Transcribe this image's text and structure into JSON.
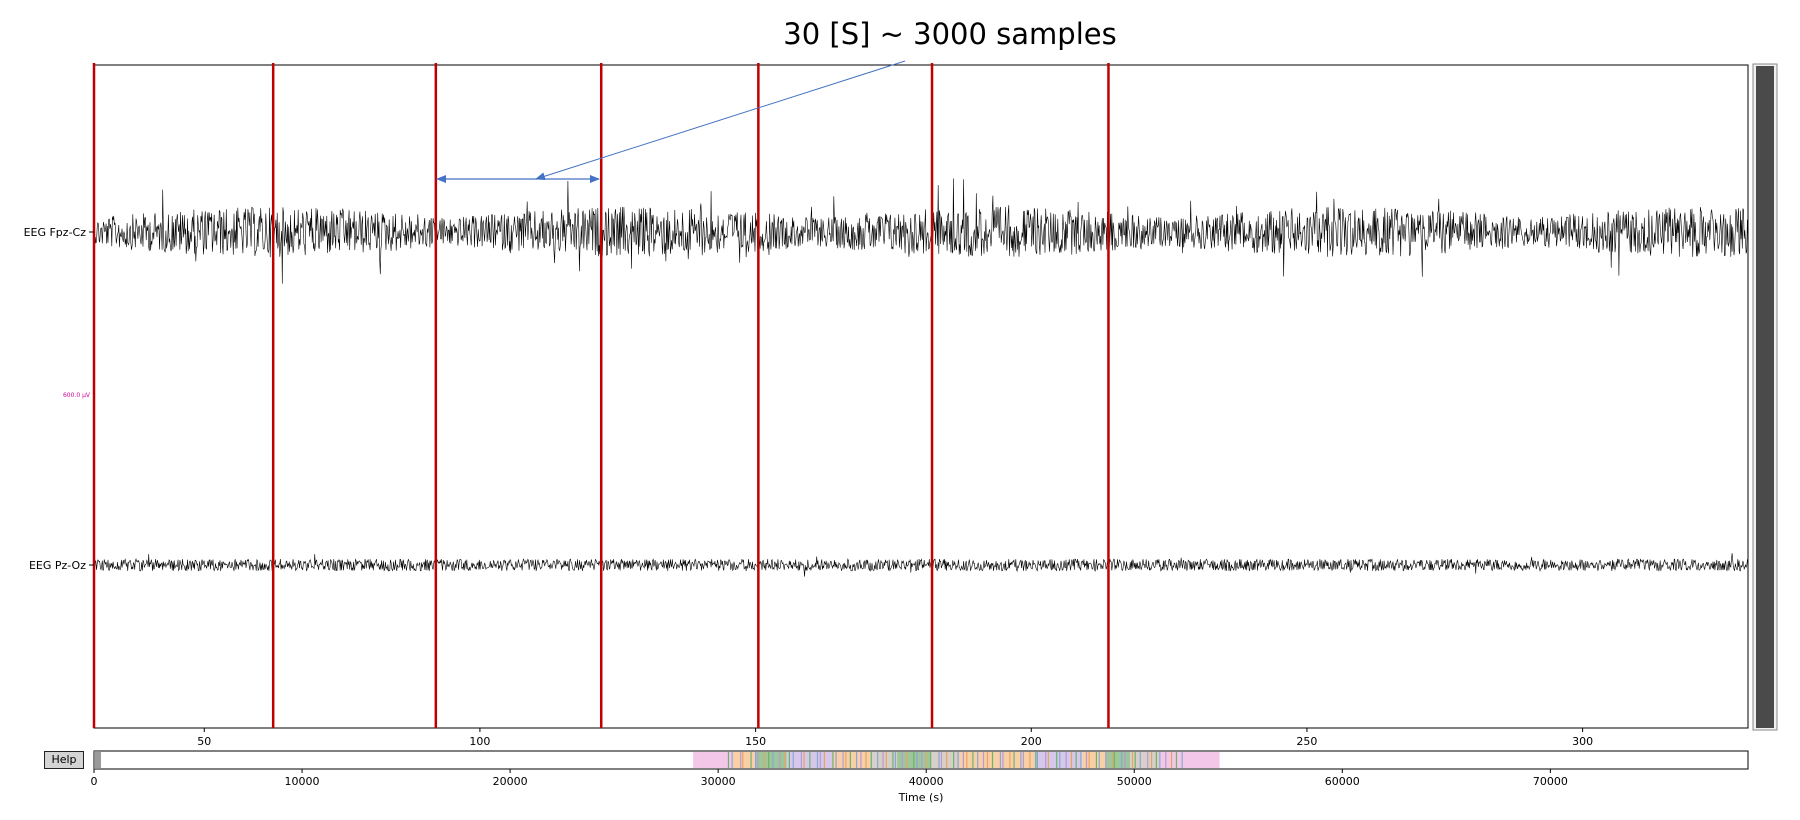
{
  "annotation": {
    "text": "30 [S] ~ 3000 samples"
  },
  "help_button": {
    "label": "Help"
  },
  "chart_data": [
    {
      "type": "line",
      "role": "main-trace-view",
      "channels": [
        {
          "name": "EEG Fpz-Cz",
          "amplitude": "high"
        },
        {
          "name": "EEG Pz-Oz",
          "amplitude": "medium"
        }
      ],
      "xlim": [
        30,
        330
      ],
      "xticks": [
        50,
        100,
        150,
        200,
        250,
        300
      ],
      "scale_label": "600.0 µV",
      "epoch_boundaries": [
        30,
        62.5,
        92,
        122,
        150.5,
        182,
        214
      ],
      "colors": {
        "trace": "#000000",
        "epoch_line": "#c00000",
        "scale": "#cc0099",
        "annotation": "#4472c4",
        "scrollbar": "#4a4a4a"
      }
    },
    {
      "type": "bar",
      "role": "overview-timeline",
      "xlabel": "Time (s)",
      "xlim": [
        0,
        79500
      ],
      "xticks": [
        0,
        10000,
        20000,
        30000,
        40000,
        50000,
        60000,
        70000
      ],
      "segments": [
        {
          "start": 0,
          "end": 400,
          "stage": "current view",
          "color": "#888888"
        },
        {
          "start": 28800,
          "end": 30700,
          "stage": "pink",
          "color": "#f2c7e8"
        },
        {
          "start": 30700,
          "end": 31800,
          "stage": "orange",
          "color": "#f8cfa6"
        },
        {
          "start": 31800,
          "end": 33300,
          "stage": "green",
          "color": "#9cc79a"
        },
        {
          "start": 33300,
          "end": 35500,
          "stage": "purple",
          "color": "#d5c8ea"
        },
        {
          "start": 35500,
          "end": 37300,
          "stage": "orange",
          "color": "#f8cfa6"
        },
        {
          "start": 37300,
          "end": 38600,
          "stage": "grey",
          "color": "#d9cfc9"
        },
        {
          "start": 38600,
          "end": 40200,
          "stage": "green",
          "color": "#9cc79a"
        },
        {
          "start": 40200,
          "end": 41600,
          "stage": "grey",
          "color": "#d9cfc9"
        },
        {
          "start": 41600,
          "end": 45200,
          "stage": "orange",
          "color": "#f8cfa6"
        },
        {
          "start": 45200,
          "end": 47500,
          "stage": "purple",
          "color": "#d5c8ea"
        },
        {
          "start": 47500,
          "end": 48600,
          "stage": "orange",
          "color": "#f8cfa6"
        },
        {
          "start": 48600,
          "end": 49800,
          "stage": "green",
          "color": "#9cc79a"
        },
        {
          "start": 49800,
          "end": 51200,
          "stage": "grey",
          "color": "#d9cfc9"
        },
        {
          "start": 51200,
          "end": 54100,
          "stage": "pink",
          "color": "#f2c7e8"
        }
      ]
    }
  ]
}
